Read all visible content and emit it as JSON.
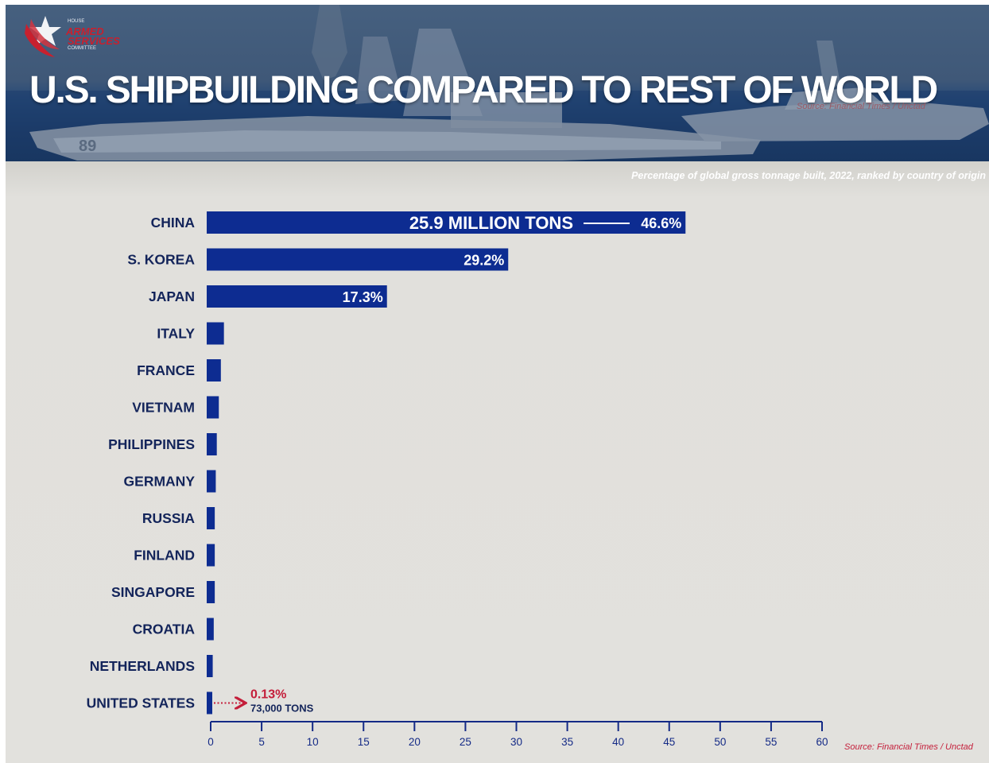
{
  "header": {
    "title": "U.S. SHIPBUILDING COMPARED TO REST OF WORLD",
    "banner_source": "Source: Financial Times / Unctad",
    "hull_number": "89",
    "logo": {
      "top": "HOUSE",
      "main_line1": "ARMED",
      "main_line2": "SERVICES",
      "bottom": "COMMITTEE",
      "icon": "eagle-icon"
    }
  },
  "chart_data": {
    "type": "bar",
    "orientation": "horizontal",
    "subtitle": "Percentage of global gross tonnage built, 2022, ranked by country of origin",
    "categories": [
      "CHINA",
      "S. KOREA",
      "JAPAN",
      "ITALY",
      "FRANCE",
      "VIETNAM",
      "PHILIPPINES",
      "GERMANY",
      "RUSSIA",
      "FINLAND",
      "SINGAPORE",
      "CROATIA",
      "NETHERLANDS",
      "UNITED STATES"
    ],
    "values": [
      46.6,
      29.2,
      17.3,
      1.3,
      1.0,
      0.8,
      0.6,
      0.5,
      0.4,
      0.4,
      0.4,
      0.3,
      0.2,
      0.13
    ],
    "data_labels": [
      "46.6%",
      "29.2%",
      "17.3%",
      "",
      "",
      "",
      "",
      "",
      "",
      "",
      "",
      "",
      "",
      ""
    ],
    "xlim": [
      0,
      60
    ],
    "xticks": [
      0,
      5,
      10,
      15,
      20,
      25,
      30,
      35,
      40,
      45,
      50,
      55,
      60
    ],
    "annotations": {
      "china_tonnage": "25.9 MILLION TONS",
      "us_percent": "0.13%",
      "us_tonnage": "73,000 TONS"
    },
    "grid": false,
    "legend": "none",
    "source": "Source: Financial Times / Unctad"
  },
  "colors": {
    "bar": "#0d2c91",
    "axis": "#142a86",
    "label": "#13245a",
    "highlight": "#c41e3a",
    "background": "#e2e1dd"
  }
}
